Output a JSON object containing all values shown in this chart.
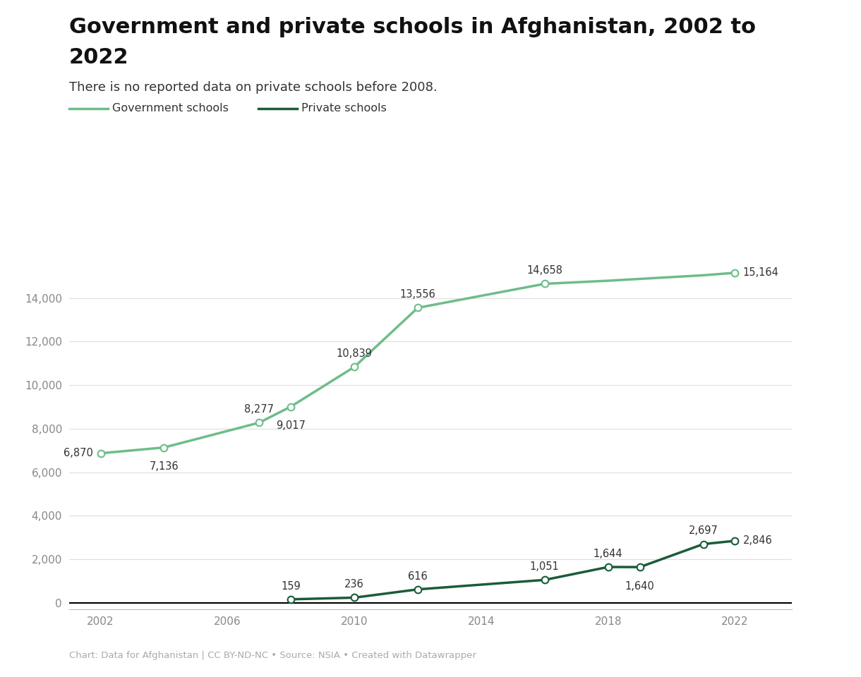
{
  "title_line1": "Government and private schools in Afghanistan, 2002 to",
  "title_line2": "2022",
  "subtitle": "There is no reported data on private schools before 2008.",
  "footnote": "Chart: Data for Afghanistan | CC BY-ND-NC • Source: NSIA • Created with Datawrapper",
  "legend_gov": "Government schools",
  "legend_priv": "Private schools",
  "gov_years": [
    2002,
    2004,
    2007,
    2008,
    2010,
    2012,
    2016,
    2018,
    2021,
    2022
  ],
  "gov_values": [
    6870,
    7136,
    8277,
    9017,
    10839,
    13556,
    14658,
    14800,
    15050,
    15164
  ],
  "gov_labeled_years": [
    2002,
    2004,
    2007,
    2008,
    2010,
    2012,
    2016,
    2022
  ],
  "gov_labeled_values": [
    6870,
    7136,
    8277,
    9017,
    10839,
    13556,
    14658,
    15164
  ],
  "gov_labeled_texts": [
    "6,870",
    "7,136",
    "8,277",
    "9,017",
    "10,839",
    "13,556",
    "14,658",
    "15,164"
  ],
  "priv_years": [
    2008,
    2010,
    2012,
    2016,
    2018,
    2019,
    2021,
    2022
  ],
  "priv_values": [
    159,
    236,
    616,
    1051,
    1644,
    1640,
    2697,
    2846
  ],
  "priv_labeled_years": [
    2008,
    2010,
    2012,
    2016,
    2018,
    2019,
    2021,
    2022
  ],
  "priv_labeled_values": [
    159,
    236,
    616,
    1051,
    1644,
    1640,
    2697,
    2846
  ],
  "priv_labeled_texts": [
    "159",
    "236",
    "616",
    "1,051",
    "1,644",
    "1,640",
    "2,697",
    "2,846"
  ],
  "gov_color": "#6dbd8a",
  "priv_color": "#1a5c38",
  "background_color": "#ffffff",
  "yticks": [
    0,
    2000,
    4000,
    6000,
    8000,
    10000,
    12000,
    14000
  ],
  "xticks": [
    2002,
    2006,
    2010,
    2014,
    2018,
    2022
  ],
  "ylim": [
    -300,
    16500
  ],
  "xlim": [
    2001.0,
    2023.8
  ]
}
